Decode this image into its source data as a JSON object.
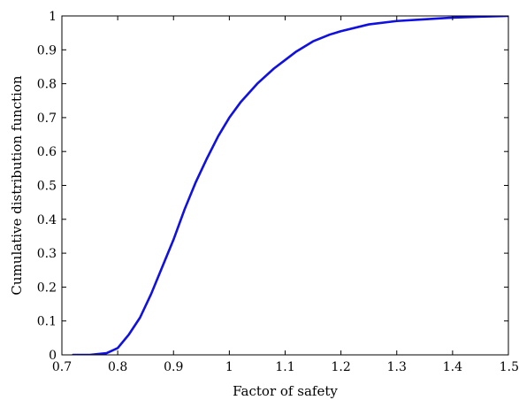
{
  "chart_data": {
    "type": "line",
    "title": "",
    "xlabel": "Factor of safety",
    "ylabel": "Cumulative distribution function",
    "xlim": [
      0.7,
      1.5
    ],
    "ylim": [
      0,
      1
    ],
    "x_ticks": [
      "0.7",
      "0.8",
      "0.9",
      "1",
      "1.1",
      "1.2",
      "1.3",
      "1.4",
      "1.5"
    ],
    "y_ticks": [
      "0",
      "0.1",
      "0.2",
      "0.3",
      "0.4",
      "0.5",
      "0.6",
      "0.7",
      "0.8",
      "0.9",
      "1"
    ],
    "grid": false,
    "legend": "none",
    "series": [
      {
        "color": "#1010e0",
        "x": [
          0.72,
          0.75,
          0.78,
          0.8,
          0.82,
          0.84,
          0.86,
          0.88,
          0.9,
          0.92,
          0.94,
          0.96,
          0.98,
          1.0,
          1.02,
          1.05,
          1.08,
          1.1,
          1.12,
          1.15,
          1.18,
          1.2,
          1.25,
          1.3,
          1.35,
          1.4,
          1.45,
          1.5
        ],
        "y": [
          0.0,
          0.0,
          0.005,
          0.02,
          0.06,
          0.11,
          0.18,
          0.26,
          0.34,
          0.43,
          0.51,
          0.58,
          0.645,
          0.7,
          0.745,
          0.8,
          0.845,
          0.87,
          0.895,
          0.925,
          0.945,
          0.955,
          0.975,
          0.985,
          0.99,
          0.995,
          0.998,
          1.0
        ]
      }
    ]
  }
}
